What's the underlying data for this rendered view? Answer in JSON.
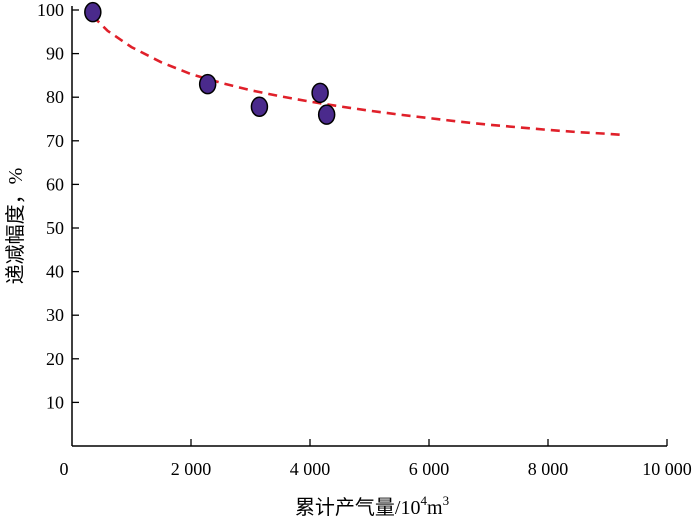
{
  "chart_data": {
    "type": "scatter",
    "title": "",
    "xlabel": "累计产气量/10",
    "xlabel_sup1": "4",
    "xlabel_mid": "m",
    "xlabel_sup2": "3",
    "ylabel": "递减幅度，%",
    "xlim": [
      0,
      10000
    ],
    "ylim": [
      0,
      100
    ],
    "x_ticks": [
      {
        "value": 0,
        "label": "0"
      },
      {
        "value": 2000,
        "label": "2 000"
      },
      {
        "value": 4000,
        "label": "4 000"
      },
      {
        "value": 6000,
        "label": "6 000"
      },
      {
        "value": 8000,
        "label": "8 000"
      },
      {
        "value": 10000,
        "label": "10 000"
      }
    ],
    "y_ticks": [
      {
        "value": 10,
        "label": "10"
      },
      {
        "value": 20,
        "label": "20"
      },
      {
        "value": 30,
        "label": "30"
      },
      {
        "value": 40,
        "label": "40"
      },
      {
        "value": 50,
        "label": "50"
      },
      {
        "value": 60,
        "label": "60"
      },
      {
        "value": 70,
        "label": "70"
      },
      {
        "value": 80,
        "label": "80"
      },
      {
        "value": 90,
        "label": "90"
      },
      {
        "value": 100,
        "label": "100"
      }
    ],
    "grid": false,
    "points": [
      {
        "x": 350,
        "y": 99.5
      },
      {
        "x": 2280,
        "y": 83.0
      },
      {
        "x": 3150,
        "y": 77.8
      },
      {
        "x": 4170,
        "y": 81.0
      },
      {
        "x": 4280,
        "y": 76.0
      }
    ],
    "trend_curve": [
      {
        "x": 350,
        "y": 98.6
      },
      {
        "x": 600,
        "y": 95.2
      },
      {
        "x": 1000,
        "y": 91.5
      },
      {
        "x": 1500,
        "y": 88.0
      },
      {
        "x": 2000,
        "y": 85.3
      },
      {
        "x": 2500,
        "y": 83.3
      },
      {
        "x": 3000,
        "y": 81.6
      },
      {
        "x": 3500,
        "y": 80.2
      },
      {
        "x": 4000,
        "y": 79.0
      },
      {
        "x": 4500,
        "y": 77.9
      },
      {
        "x": 5000,
        "y": 76.9
      },
      {
        "x": 5500,
        "y": 76.0
      },
      {
        "x": 6000,
        "y": 75.2
      },
      {
        "x": 6500,
        "y": 74.4
      },
      {
        "x": 7000,
        "y": 73.7
      },
      {
        "x": 7500,
        "y": 73.1
      },
      {
        "x": 8000,
        "y": 72.5
      },
      {
        "x": 8500,
        "y": 72.0
      },
      {
        "x": 9000,
        "y": 71.6
      },
      {
        "x": 9300,
        "y": 71.3
      }
    ],
    "colors": {
      "point_fill": "#4a2a8c",
      "point_stroke": "#000000",
      "trend": "#e0202a",
      "axis": "#000000"
    }
  }
}
